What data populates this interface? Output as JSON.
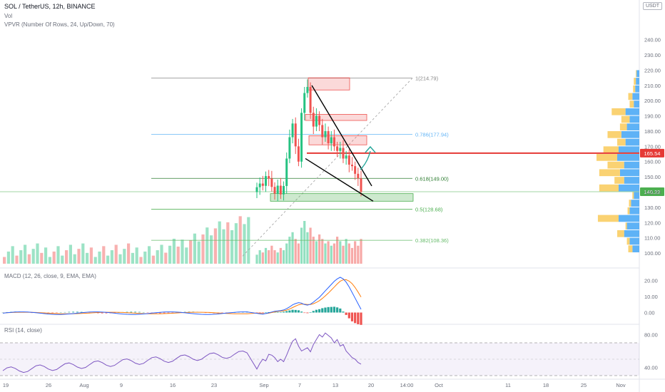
{
  "header": {
    "symbol": "SOL / TetherUS, 12h, BINANCE",
    "vol": "Vol",
    "vpvr": "VPVR (Number Of Rows, 24, Up/Down, 70)",
    "currency_badge": "USDT",
    "macd_label": "MACD (12, 26, close, 9, EMA, EMA)",
    "rsi_label": "RSI (14, close)"
  },
  "colors": {
    "bull": "#26c281",
    "bear": "#ef5350",
    "macd_line": "#2962ff",
    "signal_line": "#ff7f0e",
    "resistance": "#e53935",
    "current_price": "#4caf50",
    "rsi_line": "#7e57c2",
    "volume_profile_up": "#42a5f5",
    "volume_profile_down": "#f9c74f"
  },
  "chart_data": [
    {
      "type": "candlestick",
      "pane": "price",
      "ylim": [
        93,
        245
      ],
      "y_ticks": [
        "240.00",
        "230.00",
        "220.00",
        "210.00",
        "200.00",
        "190.00",
        "180.00",
        "170.00",
        "160.00",
        "150.00",
        "140.00",
        "130.00",
        "120.00",
        "110.00",
        "100.00"
      ],
      "y_tick_values": [
        240,
        230,
        220,
        210,
        200,
        190,
        180,
        170,
        160,
        150,
        140,
        130,
        120,
        110,
        100
      ],
      "x_ticks": [
        "19",
        "26",
        "Aug",
        "9",
        "16",
        "23",
        "Sep",
        "7",
        "13",
        "20",
        "14:00",
        "Oct",
        "11",
        "18",
        "25",
        "Nov"
      ],
      "candles": [
        {
          "o": 140.0,
          "c": 143.2
        },
        {
          "o": 143.2,
          "c": 145.6
        },
        {
          "o": 145.6,
          "c": 144.1
        },
        {
          "o": 144.1,
          "c": 150.5
        },
        {
          "o": 150.5,
          "c": 148.9
        },
        {
          "o": 148.9,
          "c": 143.4
        },
        {
          "o": 143.4,
          "c": 139.0
        },
        {
          "o": 139.0,
          "c": 144.2
        },
        {
          "o": 144.2,
          "c": 138.5
        },
        {
          "o": 138.5,
          "c": 144.0
        },
        {
          "o": 144.0,
          "c": 162.0
        },
        {
          "o": 162.0,
          "c": 176.0
        },
        {
          "o": 176.0,
          "c": 185.0
        },
        {
          "o": 185.0,
          "c": 170.0
        },
        {
          "o": 170.0,
          "c": 160.0
        },
        {
          "o": 160.0,
          "c": 192.0
        },
        {
          "o": 192.0,
          "c": 205.0
        },
        {
          "o": 205.0,
          "c": 209.0
        },
        {
          "o": 209.0,
          "c": 192.0
        },
        {
          "o": 192.0,
          "c": 183.0
        },
        {
          "o": 183.0,
          "c": 190.0
        },
        {
          "o": 190.0,
          "c": 184.0
        },
        {
          "o": 184.0,
          "c": 176.0
        },
        {
          "o": 176.0,
          "c": 180.0
        },
        {
          "o": 180.0,
          "c": 172.0
        },
        {
          "o": 172.0,
          "c": 176.0
        },
        {
          "o": 176.0,
          "c": 170.0
        },
        {
          "o": 170.0,
          "c": 167.0
        },
        {
          "o": 167.0,
          "c": 169.0
        },
        {
          "o": 169.0,
          "c": 162.0
        },
        {
          "o": 162.0,
          "c": 164.0
        },
        {
          "o": 164.0,
          "c": 158.0
        },
        {
          "o": 158.0,
          "c": 157.0
        },
        {
          "o": 157.0,
          "c": 152.0
        },
        {
          "o": 152.0,
          "c": 149.0
        },
        {
          "o": 149.0,
          "c": 140.22
        }
      ],
      "candles_prefix_note": "",
      "fib_levels": [
        {
          "label": "1(214.79)",
          "value": 214.79,
          "color": "#888888"
        },
        {
          "label": "0.786(177.94)",
          "value": 177.94,
          "color": "#64b5f6"
        },
        {
          "label": "0.618(149.00)",
          "value": 149.0,
          "color": "#2e7d32"
        },
        {
          "label": "0.5(128.68)",
          "value": 128.68,
          "color": "#4caf50"
        },
        {
          "label": "0.382(108.36)",
          "value": 108.36,
          "color": "#66bb6a"
        }
      ],
      "resistance_price": "165.54",
      "resistance_value": 165.54,
      "current_price": "140.22",
      "current_value": 140.22,
      "supply_zones": [
        [
          207,
          215
        ],
        [
          187,
          191
        ],
        [
          171,
          177
        ]
      ],
      "demand_zone": [
        134,
        139
      ],
      "wedge_upper": [
        [
          210,
          208
        ],
        [
          150,
          144
        ]
      ],
      "wedge_lower": [
        [
          162,
          162
        ],
        [
          133,
          134
        ]
      ]
    },
    {
      "type": "line",
      "pane": "macd",
      "ylim": [
        -6,
        26
      ],
      "y_ticks": [
        "20.00",
        "10.00",
        "0.00"
      ],
      "y_tick_values": [
        20,
        10,
        0
      ],
      "series": [
        {
          "values": [
            -0.5,
            -0.8,
            -1.0,
            -0.6,
            -0.2,
            0.3,
            0.8,
            1.0,
            1.2,
            1.6,
            2.4,
            3.5,
            4.8,
            5.6,
            6.2,
            5.8,
            5.0,
            4.6,
            5.2,
            6.5,
            8.0,
            9.5,
            11.5,
            13.5,
            15.5,
            17.5,
            19.5,
            21.0,
            22.0,
            21.0,
            19.0,
            16.0,
            12.5,
            9.0,
            5.5,
            2.0
          ]
        },
        {
          "values": [
            -0.3,
            -0.5,
            -0.7,
            -0.6,
            -0.4,
            0.0,
            0.4,
            0.7,
            0.9,
            1.1,
            1.5,
            2.2,
            3.1,
            4.0,
            4.8,
            5.2,
            5.2,
            5.0,
            5.0,
            5.5,
            6.3,
            7.4,
            8.8,
            10.4,
            12.1,
            14.0,
            15.9,
            17.8,
            19.5,
            20.4,
            20.5,
            19.6,
            18.0,
            15.6,
            12.8,
            9.7
          ]
        }
      ],
      "histogram": [
        -0.2,
        -0.3,
        -0.3,
        0.0,
        0.2,
        0.3,
        0.4,
        0.3,
        0.3,
        0.5,
        0.9,
        1.3,
        1.7,
        1.6,
        1.4,
        0.6,
        -0.2,
        -0.4,
        0.2,
        1.0,
        1.7,
        2.1,
        2.7,
        3.1,
        3.4,
        3.5,
        3.6,
        3.2,
        2.5,
        0.6,
        -1.5,
        -3.6,
        -5.5,
        -6.6,
        -7.3,
        -7.7
      ]
    },
    {
      "type": "line",
      "pane": "rsi",
      "ylim": [
        30,
        90
      ],
      "y_ticks": [
        "80.00",
        "40.00"
      ],
      "y_tick_values": [
        80,
        40
      ],
      "band": [
        30,
        70
      ],
      "series": [
        {
          "values": [
            38,
            45,
            50,
            48,
            56,
            55,
            52,
            47,
            50,
            47,
            55,
            64,
            72,
            75,
            66,
            60,
            62,
            64,
            59,
            68,
            74,
            80,
            77,
            82,
            79,
            76,
            70,
            74,
            66,
            68,
            60,
            56,
            52,
            50,
            46,
            44
          ]
        }
      ]
    },
    {
      "type": "bar",
      "pane": "volume",
      "values": [
        4,
        6,
        5,
        7,
        6,
        8,
        6,
        5,
        7,
        6,
        9,
        12,
        14,
        11,
        9,
        16,
        19,
        14,
        16,
        12,
        10,
        13,
        11,
        9,
        10,
        8,
        9,
        12,
        10,
        8,
        11,
        9,
        7,
        10,
        8,
        11
      ],
      "directions": [
        "up",
        "up",
        "down",
        "up",
        "down",
        "down",
        "down",
        "up",
        "down",
        "up",
        "up",
        "up",
        "up",
        "down",
        "down",
        "up",
        "up",
        "up",
        "down",
        "down",
        "up",
        "down",
        "down",
        "up",
        "down",
        "up",
        "down",
        "down",
        "up",
        "down",
        "up",
        "down",
        "down",
        "down",
        "down",
        "down"
      ]
    },
    {
      "type": "bar",
      "pane": "volume_profile",
      "rows_price_low": [
        100,
        105,
        110,
        115,
        120,
        125,
        130,
        135,
        140,
        145,
        150,
        155,
        160,
        165,
        170,
        175,
        180,
        185,
        190,
        195,
        200,
        205,
        210,
        215
      ],
      "up": [
        10,
        14,
        22,
        18,
        30,
        14,
        12,
        8,
        30,
        22,
        28,
        22,
        32,
        30,
        20,
        26,
        18,
        14,
        20,
        8,
        10,
        6,
        5,
        4
      ],
      "down": [
        6,
        4,
        10,
        2,
        30,
        3,
        3,
        2,
        28,
        14,
        30,
        24,
        30,
        22,
        12,
        20,
        10,
        12,
        20,
        6,
        6,
        3,
        3,
        1
      ]
    }
  ]
}
